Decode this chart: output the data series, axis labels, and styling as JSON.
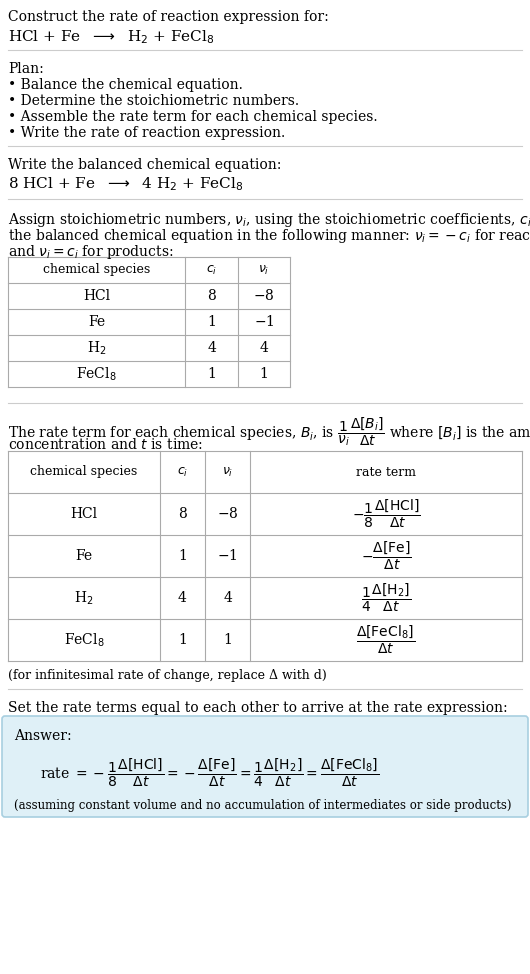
{
  "title_line1": "Construct the rate of reaction expression for:",
  "plan_header": "Plan:",
  "plan_items": [
    "• Balance the chemical equation.",
    "• Determine the stoichiometric numbers.",
    "• Assemble the rate term for each chemical species.",
    "• Write the rate of reaction expression."
  ],
  "balanced_header": "Write the balanced chemical equation:",
  "set_equal_text": "Set the rate terms equal to each other to arrive at the rate expression:",
  "infinitesimal_note": "(for infinitesimal rate of change, replace Δ with d)",
  "answer_label": "Answer:",
  "assuming_note": "(assuming constant volume and no accumulation of intermediates or side products)",
  "answer_box_color": "#dff0f7",
  "answer_box_border": "#a8cfe0",
  "bg_color": "#ffffff",
  "text_color": "#000000",
  "table_border_color": "#aaaaaa",
  "separator_color": "#cccccc"
}
